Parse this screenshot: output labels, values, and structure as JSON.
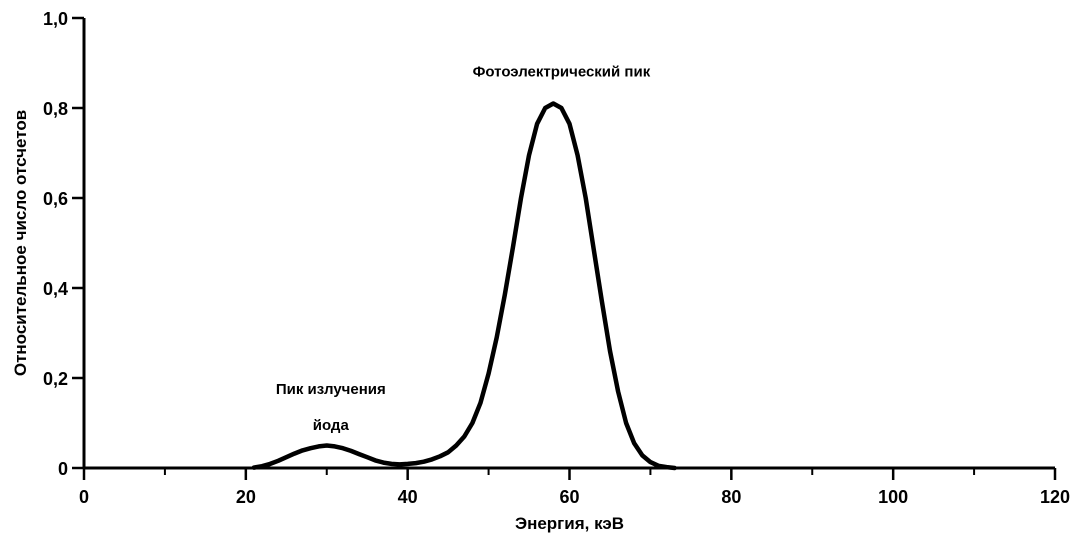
{
  "chart_data": {
    "type": "line",
    "xlabel": "Энергия, кэВ",
    "ylabel": "Относительное число отсчетов",
    "xlim": [
      0,
      120
    ],
    "ylim": [
      0,
      1.0
    ],
    "x_ticks": [
      0,
      20,
      40,
      60,
      80,
      100,
      120
    ],
    "x_tick_labels": [
      "0",
      "20",
      "40",
      "60",
      "80",
      "100",
      "120"
    ],
    "x_minor_ticks": [
      10,
      30,
      50,
      70,
      90,
      110
    ],
    "y_ticks": [
      0,
      0.2,
      0.4,
      0.6,
      0.8,
      1.0
    ],
    "y_tick_labels": [
      "0",
      "0,2",
      "0,4",
      "0,6",
      "0,8",
      "1,0"
    ],
    "grid": false,
    "series": [
      {
        "color": "#000000",
        "x": [
          21,
          22,
          23,
          24,
          25,
          26,
          27,
          28,
          29,
          30,
          31,
          32,
          33,
          34,
          35,
          36,
          37,
          38,
          39,
          40,
          41,
          42,
          43,
          44,
          45,
          46,
          47,
          48,
          49,
          50,
          51,
          52,
          53,
          54,
          55,
          56,
          57,
          58,
          59,
          60,
          61,
          62,
          63,
          64,
          65,
          66,
          67,
          68,
          69,
          70,
          71,
          72,
          73
        ],
        "y": [
          0.001,
          0.004,
          0.009,
          0.016,
          0.024,
          0.032,
          0.039,
          0.044,
          0.048,
          0.05,
          0.048,
          0.044,
          0.038,
          0.031,
          0.024,
          0.017,
          0.012,
          0.009,
          0.008,
          0.009,
          0.011,
          0.014,
          0.019,
          0.026,
          0.035,
          0.05,
          0.07,
          0.1,
          0.145,
          0.21,
          0.29,
          0.385,
          0.49,
          0.6,
          0.695,
          0.765,
          0.8,
          0.81,
          0.8,
          0.765,
          0.695,
          0.6,
          0.485,
          0.37,
          0.26,
          0.17,
          0.1,
          0.055,
          0.028,
          0.013,
          0.005,
          0.002,
          0.0
        ]
      }
    ],
    "annotations": [
      {
        "text": "Фотоэлектрический пик",
        "x": 59,
        "y": 0.87
      },
      {
        "text": "Пик излучения",
        "x": 30.5,
        "y": 0.165
      },
      {
        "text": "йода",
        "x": 30.5,
        "y": 0.085
      }
    ]
  }
}
